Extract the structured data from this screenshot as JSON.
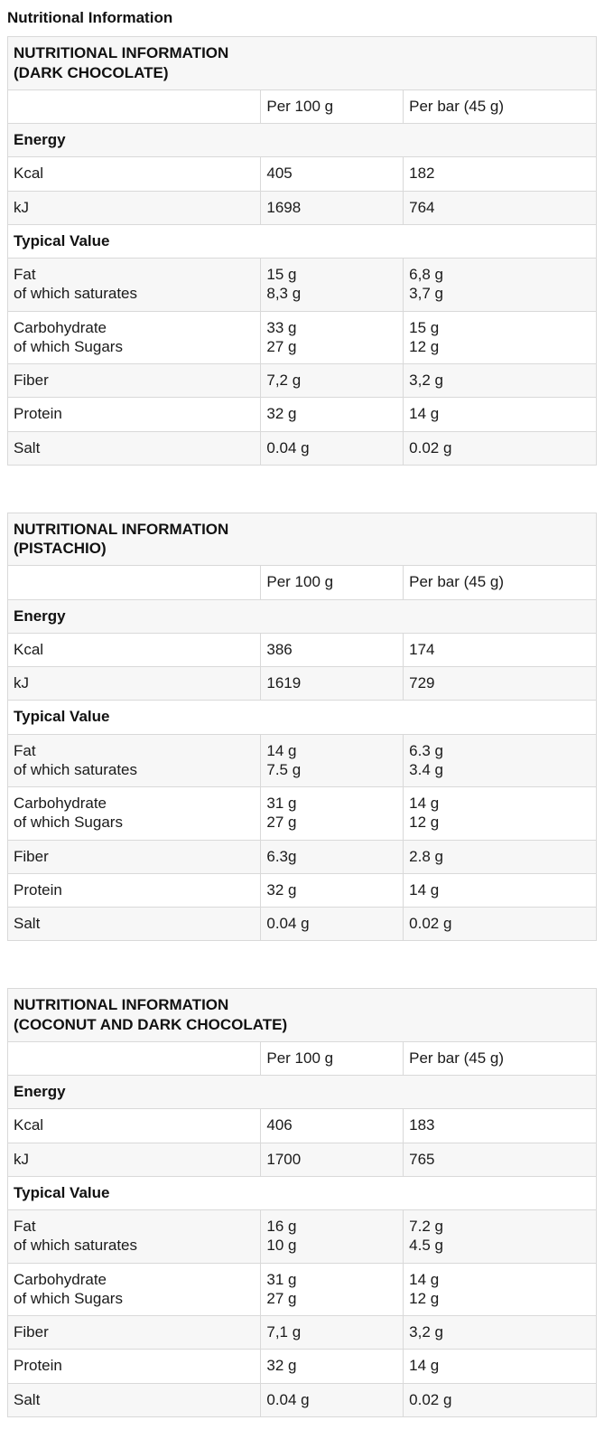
{
  "page": {
    "title": "Nutritional Information"
  },
  "columns": {
    "per_100_g": "Per 100 g",
    "per_bar": "Per bar (45 g)"
  },
  "tables": [
    {
      "title_line1": "NUTRITIONAL INFORMATION",
      "title_line2": "(DARK CHOCOLATE)",
      "rows": [
        {
          "section": "Energy"
        },
        {
          "label": "Kcal",
          "per100": "405",
          "perbar": "182"
        },
        {
          "label": "kJ",
          "per100": "1698",
          "perbar": "764"
        },
        {
          "section": "Typical Value"
        },
        {
          "label": "Fat",
          "label2": "of which saturates",
          "per100": "15 g",
          "per100b": "8,3 g",
          "perbar": "6,8 g",
          "perbarb": "3,7 g"
        },
        {
          "label": "Carbohydrate",
          "label2": "of which Sugars",
          "per100": "33 g",
          "per100b": "27 g",
          "perbar": "15 g",
          "perbarb": "12 g"
        },
        {
          "label": "Fiber",
          "per100": "7,2 g",
          "perbar": "3,2 g"
        },
        {
          "label": "Protein",
          "per100": "32 g",
          "perbar": "14 g"
        },
        {
          "label": "Salt",
          "per100": "0.04 g",
          "perbar": "0.02 g"
        }
      ]
    },
    {
      "title_line1": "NUTRITIONAL INFORMATION",
      "title_line2": "(PISTACHIO)",
      "rows": [
        {
          "section": "Energy"
        },
        {
          "label": "Kcal",
          "per100": "386",
          "perbar": "174"
        },
        {
          "label": "kJ",
          "per100": "1619",
          "perbar": "729"
        },
        {
          "section": "Typical Value"
        },
        {
          "label": "Fat",
          "label2": "of which saturates",
          "per100": "14 g",
          "per100b": "7.5 g",
          "perbar": "6.3 g",
          "perbarb": "3.4 g"
        },
        {
          "label": "Carbohydrate",
          "label2": "of which Sugars",
          "per100": "31 g",
          "per100b": "27 g",
          "perbar": "14 g",
          "perbarb": "12 g"
        },
        {
          "label": "Fiber",
          "per100": "6.3g",
          "perbar": "2.8 g"
        },
        {
          "label": "Protein",
          "per100": "32 g",
          "perbar": "14 g"
        },
        {
          "label": "Salt",
          "per100": "0.04 g",
          "perbar": "0.02 g"
        }
      ]
    },
    {
      "title_line1": "NUTRITIONAL INFORMATION",
      "title_line2": "(COCONUT AND DARK CHOCOLATE)",
      "rows": [
        {
          "section": "Energy"
        },
        {
          "label": "Kcal",
          "per100": "406",
          "perbar": "183"
        },
        {
          "label": "kJ",
          "per100": "1700",
          "perbar": "765"
        },
        {
          "section": "Typical Value"
        },
        {
          "label": "Fat",
          "label2": "of which saturates",
          "per100": "16 g",
          "per100b": "10 g",
          "perbar": "7.2 g",
          "perbarb": "4.5 g"
        },
        {
          "label": "Carbohydrate",
          "label2": "of which Sugars",
          "per100": "31 g",
          "per100b": "27 g",
          "perbar": "14 g",
          "perbarb": "12 g"
        },
        {
          "label": "Fiber",
          "per100": "7,1 g",
          "perbar": "3,2 g"
        },
        {
          "label": "Protein",
          "per100": "32 g",
          "perbar": "14 g"
        },
        {
          "label": "Salt",
          "per100": "0.04 g",
          "perbar": "0.02 g"
        }
      ]
    }
  ]
}
